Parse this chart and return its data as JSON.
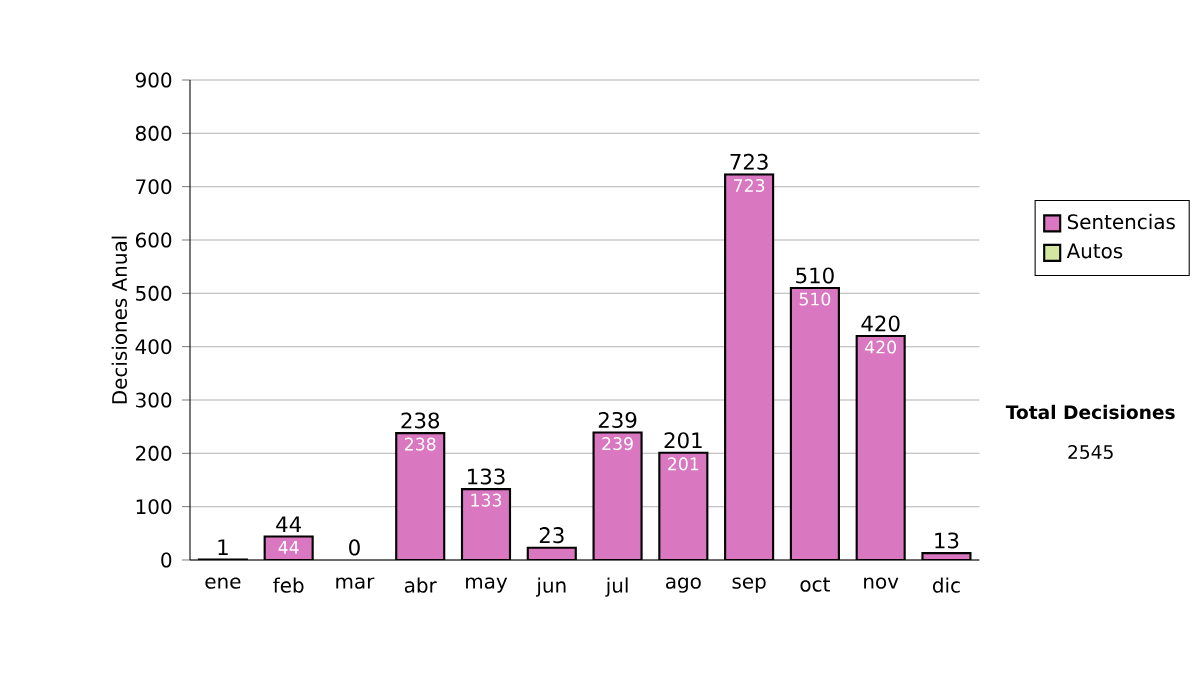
{
  "chart_data": {
    "type": "bar",
    "stacked": true,
    "ylabel": "Decisiones Anual",
    "categories": [
      "ene",
      "feb",
      "mar",
      "abr",
      "may",
      "jun",
      "jul",
      "ago",
      "sep",
      "oct",
      "nov",
      "dic"
    ],
    "series": [
      {
        "name": "Sentencias",
        "color": "#d977c0",
        "values": [
          1,
          44,
          0,
          238,
          133,
          23,
          239,
          201,
          723,
          510,
          420,
          13
        ],
        "value_labels": [
          null,
          "44",
          null,
          "238",
          "133",
          null,
          "239",
          "201",
          "723",
          "510",
          "420",
          null
        ]
      },
      {
        "name": "Autos",
        "color": "#d4e6a0",
        "values": [
          0,
          0,
          0,
          0,
          0,
          0,
          0,
          0,
          0,
          0,
          0,
          0
        ]
      }
    ],
    "totals": [
      "1",
      "44",
      "0",
      "238",
      "133",
      "23",
      "239",
      "201",
      "723",
      "510",
      "420",
      "13"
    ],
    "ylim": [
      0,
      900
    ],
    "yticks": [
      0,
      100,
      200,
      300,
      400,
      500,
      600,
      700,
      800,
      900
    ],
    "grid": "y",
    "legend": "right",
    "annotations": [
      "Total Decisiones",
      "2545"
    ]
  }
}
